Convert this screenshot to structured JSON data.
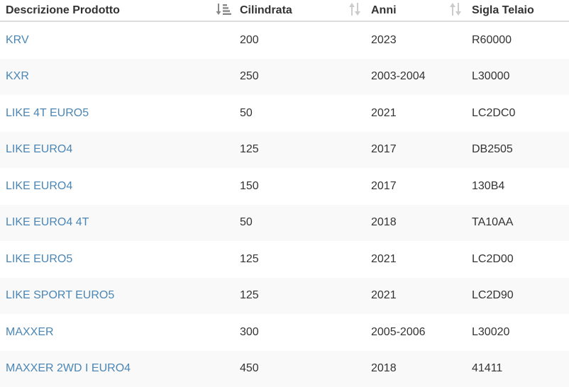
{
  "table": {
    "headers": [
      {
        "label": "Descrizione Prodotto",
        "sort": "active-desc"
      },
      {
        "label": "Cilindrata",
        "sort": "none"
      },
      {
        "label": "Anni",
        "sort": "none"
      },
      {
        "label": "Sigla Telaio",
        "sort": "none"
      }
    ],
    "rows": [
      {
        "product": "KRV",
        "displacement": "200",
        "years": "2023",
        "frame_code": "R60000"
      },
      {
        "product": "KXR",
        "displacement": "250",
        "years": "2003-2004",
        "frame_code": "L30000"
      },
      {
        "product": "LIKE 4T EURO5",
        "displacement": "50",
        "years": "2021",
        "frame_code": "LC2DC0"
      },
      {
        "product": "LIKE EURO4",
        "displacement": "125",
        "years": "2017",
        "frame_code": "DB2505"
      },
      {
        "product": "LIKE EURO4",
        "displacement": "150",
        "years": "2017",
        "frame_code": "130B4"
      },
      {
        "product": "LIKE EURO4 4T",
        "displacement": "50",
        "years": "2018",
        "frame_code": "TA10AA"
      },
      {
        "product": "LIKE EURO5",
        "displacement": "125",
        "years": "2021",
        "frame_code": "LC2D00"
      },
      {
        "product": "LIKE SPORT EURO5",
        "displacement": "125",
        "years": "2021",
        "frame_code": "LC2D90"
      },
      {
        "product": "MAXXER",
        "displacement": "300",
        "years": "2005-2006",
        "frame_code": "L30020"
      },
      {
        "product": "MAXXER 2WD I EURO4",
        "displacement": "450",
        "years": "2018",
        "frame_code": "41411"
      }
    ]
  },
  "colors": {
    "link": "#4b86b4",
    "text": "#333333",
    "stripe": "#f9f9f9",
    "sort_active": "#888888",
    "sort_inactive": "#cccccc"
  },
  "icons": {
    "sort_active": "sort-amount-desc-icon",
    "sort_inactive": "sort-both-icon"
  }
}
